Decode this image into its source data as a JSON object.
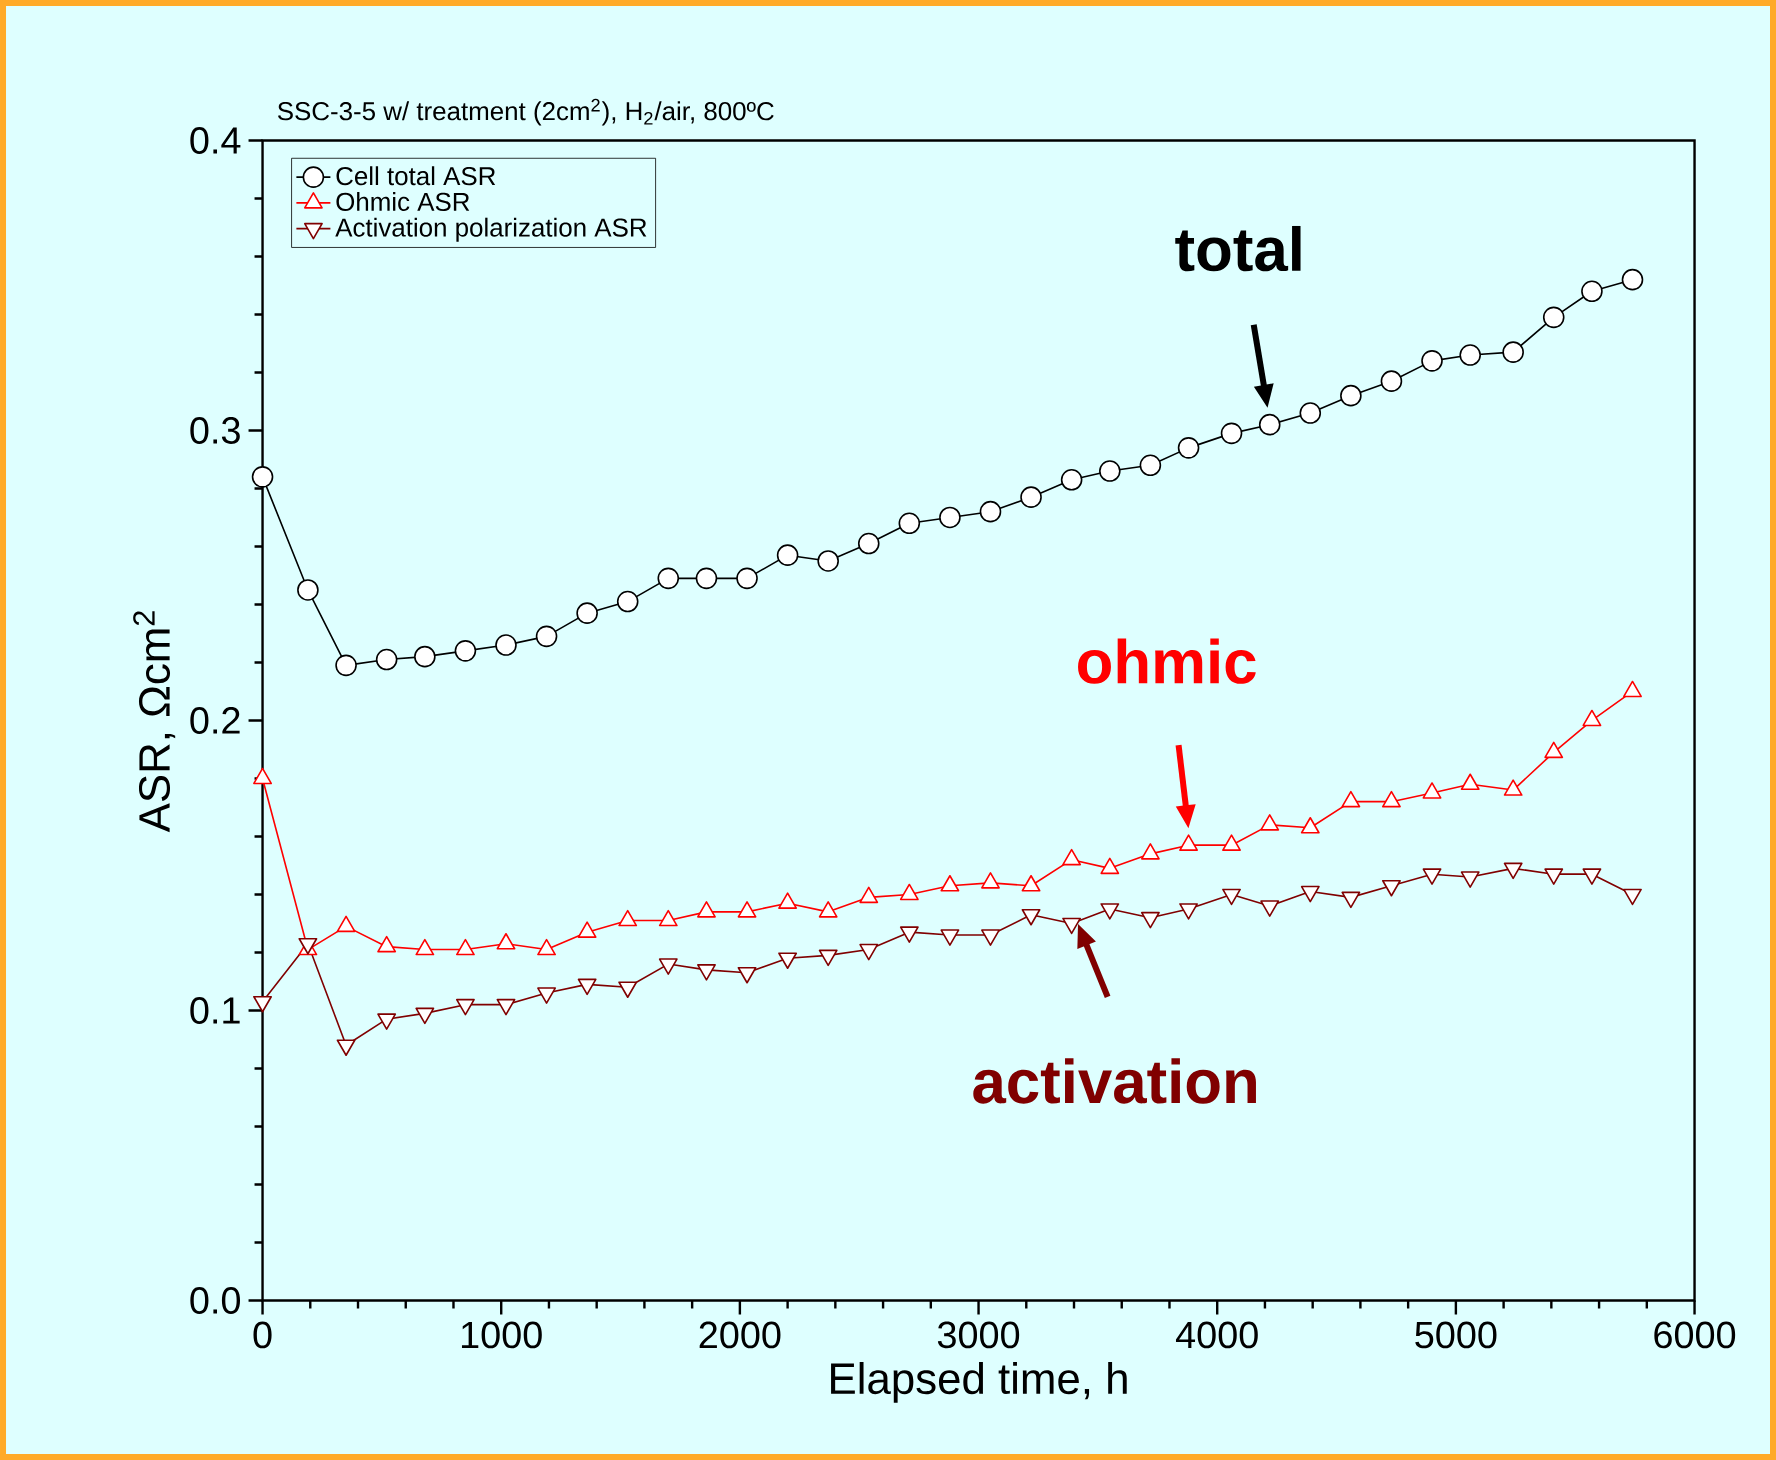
{
  "chart_data": {
    "type": "line",
    "title": "SSC-3-5 w/ treatment (2cm$^{2}$), H$_{2}$/air, 800ºC",
    "xlabel": "Elapsed time, h",
    "ylabel": "ASR, Ωcm$^{2}$",
    "x": [
      0,
      190,
      350,
      520,
      680,
      850,
      1020,
      1190,
      1360,
      1530,
      1700,
      1860,
      2030,
      2200,
      2370,
      2540,
      2710,
      2880,
      3050,
      3220,
      3390,
      3550,
      3720,
      3880,
      4060,
      4220,
      4390,
      4560,
      4730,
      4900,
      5060,
      5240,
      5410,
      5570,
      5740
    ],
    "series": [
      {
        "name": "Cell total ASR",
        "color": "#000000",
        "marker": "circle",
        "values": [
          0.284,
          0.245,
          0.219,
          0.221,
          0.222,
          0.224,
          0.226,
          0.229,
          0.237,
          0.241,
          0.249,
          0.249,
          0.249,
          0.257,
          0.255,
          0.261,
          0.268,
          0.27,
          0.272,
          0.277,
          0.283,
          0.286,
          0.288,
          0.294,
          0.299,
          0.302,
          0.306,
          0.312,
          0.317,
          0.324,
          0.326,
          0.327,
          0.339,
          0.348,
          0.352
        ]
      },
      {
        "name": "Ohmic ASR",
        "color": "#ff0000",
        "marker": "triangle",
        "values": [
          0.18,
          0.121,
          0.129,
          0.122,
          0.121,
          0.121,
          0.123,
          0.121,
          0.127,
          0.131,
          0.131,
          0.134,
          0.134,
          0.137,
          0.134,
          0.139,
          0.14,
          0.143,
          0.144,
          0.143,
          0.152,
          0.149,
          0.154,
          0.157,
          0.157,
          0.164,
          0.163,
          0.172,
          0.172,
          0.175,
          0.178,
          0.176,
          0.189,
          0.2,
          0.21
        ]
      },
      {
        "name": "Activation polarization ASR",
        "color": "#800000",
        "marker": "triangle down",
        "values": [
          0.103,
          0.123,
          0.088,
          0.097,
          0.099,
          0.102,
          0.102,
          0.106,
          0.109,
          0.108,
          0.116,
          0.114,
          0.113,
          0.118,
          0.119,
          0.121,
          0.127,
          0.126,
          0.126,
          0.133,
          0.13,
          0.135,
          0.132,
          0.135,
          0.14,
          0.136,
          0.141,
          0.139,
          0.143,
          0.147,
          0.146,
          0.149,
          0.147,
          0.147,
          0.14
        ]
      }
    ],
    "xlim": [
      0,
      6000
    ],
    "xticks": [
      0,
      1000,
      2000,
      3000,
      4000,
      5000,
      6000
    ],
    "ylim": [
      0,
      0.4
    ],
    "yticks": [
      {
        "value": 0,
        "label": "0.0"
      },
      {
        "value": 0.1,
        "label": "0.1"
      },
      {
        "value": 0.2,
        "label": "0.2"
      },
      {
        "value": 0.3,
        "label": "0.3"
      },
      {
        "value": 0.4,
        "label": "0.4"
      }
    ],
    "legend": "top left",
    "annotations": [
      {
        "text": "total",
        "x": 4220,
        "y": 0.302
      },
      {
        "text": "ohmic",
        "x": 3880,
        "y": 0.157
      },
      {
        "text": "activation",
        "x": 3390,
        "y": 0.135
      }
    ]
  }
}
